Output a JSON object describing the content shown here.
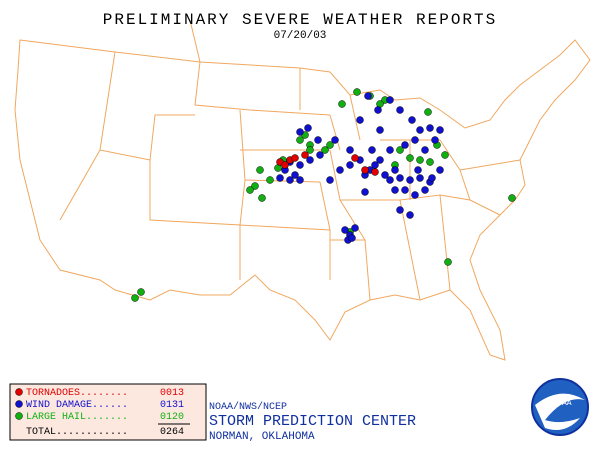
{
  "title": "PRELIMINARY SEVERE WEATHER REPORTS",
  "date": "07/20/03",
  "legend": {
    "rows": [
      {
        "label": "TORNADOES........",
        "count": "0013",
        "color": "#e00000"
      },
      {
        "label": "WIND DAMAGE......",
        "count": "0131",
        "color": "#1010d0"
      },
      {
        "label": "LARGE HAIL.......",
        "count": "0120",
        "color": "#10b010"
      }
    ],
    "total": {
      "label": "TOTAL............",
      "count": "0264"
    }
  },
  "agency": {
    "line1": "NOAA/NWS/NCEP",
    "name": "STORM PREDICTION CENTER",
    "location": "NORMAN, OKLAHOMA",
    "logo": "NOAA"
  }
}
